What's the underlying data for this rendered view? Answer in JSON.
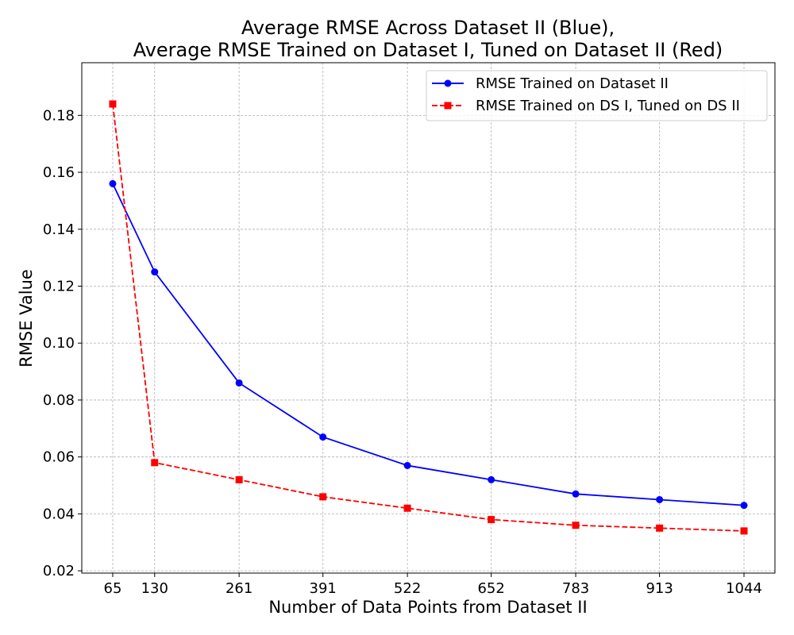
{
  "chart_data": {
    "type": "line",
    "title": [
      "Average RMSE Across Dataset II (Blue),",
      "Average RMSE Trained on Dataset I, Tuned on Dataset II (Red)"
    ],
    "xlabel": "Number of Data Points from Dataset II",
    "ylabel": "RMSE Value",
    "x": [
      65,
      130,
      261,
      391,
      522,
      652,
      783,
      913,
      1044
    ],
    "xticks": [
      "65",
      "130",
      "261",
      "391",
      "522",
      "652",
      "783",
      "913",
      "1044"
    ],
    "xlim": [
      17,
      1092
    ],
    "yticks": [
      0.02,
      0.04,
      0.06,
      0.08,
      0.1,
      0.12,
      0.14,
      0.16,
      0.18
    ],
    "yticklabels": [
      "0.02",
      "0.04",
      "0.06",
      "0.08",
      "0.10",
      "0.12",
      "0.14",
      "0.16",
      "0.18"
    ],
    "ylim": [
      0.0192,
      0.1985
    ],
    "grid": true,
    "legend_position": "top-right",
    "series": [
      {
        "name": "RMSE Trained on Dataset II",
        "color": "#0000ff",
        "line_style": "solid",
        "marker": "circle",
        "values": [
          0.156,
          0.125,
          0.086,
          0.067,
          0.057,
          0.052,
          0.047,
          0.045,
          0.043
        ]
      },
      {
        "name": "RMSE Trained on DS I, Tuned on DS II",
        "color": "#ff0000",
        "line_style": "dashed",
        "marker": "square",
        "values": [
          0.184,
          0.058,
          0.052,
          0.046,
          0.042,
          0.038,
          0.036,
          0.035,
          0.034
        ]
      }
    ]
  }
}
